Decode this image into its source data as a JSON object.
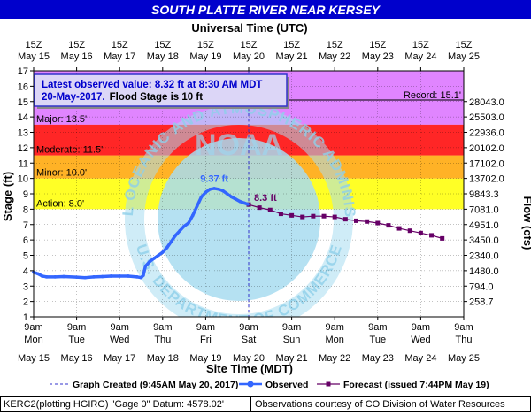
{
  "chart_data": {
    "type": "line",
    "title": "SOUTH PLATTE RIVER NEAR KERSEY",
    "top_axis_title": "Universal Time (UTC)",
    "bottom_axis_title": "Site Time (MDT)",
    "ylabel": "Stage (ft)",
    "y2label": "Flow (cfs)",
    "ylim": [
      1,
      17
    ],
    "y_ticks": [
      1,
      2,
      3,
      4,
      5,
      6,
      7,
      8,
      9,
      10,
      11,
      12,
      13,
      14,
      15,
      16,
      17
    ],
    "xlim": [
      0,
      10
    ],
    "top_ticks": [
      {
        "x": 0,
        "l1": "15Z",
        "l2": "May 15"
      },
      {
        "x": 1,
        "l1": "15Z",
        "l2": "May 16"
      },
      {
        "x": 2,
        "l1": "15Z",
        "l2": "May 17"
      },
      {
        "x": 3,
        "l1": "15Z",
        "l2": "May 18"
      },
      {
        "x": 4,
        "l1": "15Z",
        "l2": "May 19"
      },
      {
        "x": 5,
        "l1": "15Z",
        "l2": "May 20"
      },
      {
        "x": 6,
        "l1": "15Z",
        "l2": "May 21"
      },
      {
        "x": 7,
        "l1": "15Z",
        "l2": "May 22"
      },
      {
        "x": 8,
        "l1": "15Z",
        "l2": "May 23"
      },
      {
        "x": 9,
        "l1": "15Z",
        "l2": "May 24"
      },
      {
        "x": 10,
        "l1": "15Z",
        "l2": "May 25"
      }
    ],
    "bottom_ticks": [
      {
        "x": 0,
        "l1": "9am",
        "l2": "Mon",
        "l3": "May 15"
      },
      {
        "x": 1,
        "l1": "9am",
        "l2": "Tue",
        "l3": "May 16"
      },
      {
        "x": 2,
        "l1": "9am",
        "l2": "Wed",
        "l3": "May 17"
      },
      {
        "x": 3,
        "l1": "9am",
        "l2": "Thu",
        "l3": "May 18"
      },
      {
        "x": 4,
        "l1": "9am",
        "l2": "Fri",
        "l3": "May 19"
      },
      {
        "x": 5,
        "l1": "9am",
        "l2": "Sat",
        "l3": "May 20"
      },
      {
        "x": 6,
        "l1": "9am",
        "l2": "Sun",
        "l3": "May 21"
      },
      {
        "x": 7,
        "l1": "9am",
        "l2": "Mon",
        "l3": "May 22"
      },
      {
        "x": 8,
        "l1": "9am",
        "l2": "Tue",
        "l3": "May 23"
      },
      {
        "x": 9,
        "l1": "9am",
        "l2": "Wed",
        "l3": "May 24"
      },
      {
        "x": 10,
        "l1": "9am",
        "l2": "Thu",
        "l3": "May 25"
      }
    ],
    "flow_ticks": [
      {
        "stage": 2,
        "label": "258.7"
      },
      {
        "stage": 3,
        "label": "794.0"
      },
      {
        "stage": 4,
        "label": "1480.0"
      },
      {
        "stage": 5,
        "label": "2340.0"
      },
      {
        "stage": 6,
        "label": "3450.0"
      },
      {
        "stage": 7,
        "label": "4951.0"
      },
      {
        "stage": 8,
        "label": "7081.0"
      },
      {
        "stage": 9,
        "label": "9843.3"
      },
      {
        "stage": 10,
        "label": "13702.0"
      },
      {
        "stage": 11,
        "label": "17102.0"
      },
      {
        "stage": 12,
        "label": "20102.0"
      },
      {
        "stage": 13,
        "label": "22936.0"
      },
      {
        "stage": 14,
        "label": "25503.0"
      },
      {
        "stage": 15,
        "label": "28043.0"
      }
    ],
    "flood_categories": [
      {
        "name": "Action",
        "label": "Action: 8.0'",
        "from": 8.0,
        "to": 10.0,
        "color": "#ffff00"
      },
      {
        "name": "Minor",
        "label": "Minor: 10.0'",
        "from": 10.0,
        "to": 11.5,
        "color": "#ffa500"
      },
      {
        "name": "Moderate",
        "label": "Moderate: 11.5'",
        "from": 11.5,
        "to": 13.5,
        "color": "#ff0000"
      },
      {
        "name": "Major",
        "label": "Major: 13.5'",
        "from": 13.5,
        "to": 17,
        "color": "#cc33ff"
      }
    ],
    "record": {
      "label": "Record: 15.1'",
      "value": 15.1
    },
    "observed": {
      "name": "Observed",
      "color": "#3366ff",
      "x": [
        0.0,
        0.1,
        0.2,
        0.3,
        0.5,
        0.7,
        1.0,
        1.2,
        1.4,
        1.6,
        1.8,
        2.0,
        2.2,
        2.4,
        2.5,
        2.55,
        2.6,
        2.7,
        2.8,
        2.9,
        3.0,
        3.1,
        3.2,
        3.3,
        3.4,
        3.5,
        3.6,
        3.7,
        3.8,
        3.9,
        4.0,
        4.1,
        4.2,
        4.3,
        4.4,
        4.5,
        4.6,
        4.7,
        4.8,
        4.9,
        4.98
      ],
      "y": [
        3.9,
        3.8,
        3.65,
        3.6,
        3.6,
        3.62,
        3.58,
        3.55,
        3.6,
        3.62,
        3.65,
        3.65,
        3.65,
        3.6,
        3.55,
        3.7,
        4.3,
        4.6,
        4.8,
        5.0,
        5.2,
        5.5,
        5.9,
        6.3,
        6.6,
        6.9,
        7.1,
        7.6,
        8.2,
        8.8,
        9.1,
        9.3,
        9.35,
        9.3,
        9.2,
        9.0,
        8.8,
        8.65,
        8.5,
        8.4,
        8.32
      ]
    },
    "forecast": {
      "name": "Forecast",
      "color": "#660066",
      "x": [
        5.0,
        5.25,
        5.5,
        5.75,
        6.0,
        6.25,
        6.5,
        6.75,
        7.0,
        7.25,
        7.5,
        7.75,
        8.0,
        8.25,
        8.5,
        8.75,
        9.0,
        9.25,
        9.5
      ],
      "y": [
        8.3,
        8.1,
        7.95,
        7.7,
        7.6,
        7.5,
        7.55,
        7.55,
        7.5,
        7.35,
        7.25,
        7.2,
        7.1,
        6.95,
        6.75,
        6.6,
        6.45,
        6.3,
        6.1
      ]
    },
    "created_x": 5.0,
    "peak_label": "9.37 ft",
    "peak_x": 4.2,
    "peak_y": 9.37,
    "latest_label": "8.3 ft",
    "latest_x": 5.0,
    "latest_y": 8.32,
    "colors": {
      "title_bar": "#0000cc",
      "plot_border": "#000000",
      "grid": "#000000",
      "watermark": "#a8dcf0"
    }
  },
  "info_box": {
    "line1": "Latest observed value: 8.32 ft at 8:30 AM MDT",
    "line2_date": "20-May-2017.",
    "line2_rest": "Flood Stage is 10 ft"
  },
  "legend": {
    "created": "Graph Created (9:45AM May 20, 2017)",
    "observed": "Observed",
    "forecast": "Forecast (issued 7:44PM May 19)"
  },
  "footer": {
    "left": "KERC2(plotting HGIRG) \"Gage 0\" Datum: 4578.02'",
    "right": "Observations courtesy of CO Division of Water Resources"
  },
  "watermark": {
    "top_text": "NATIONAL OCEANIC AND ATMOSPHERIC ADMINISTRATION",
    "bottom_text": "U.S. DEPARTMENT OF COMMERCE",
    "center_text": "NOAA"
  }
}
